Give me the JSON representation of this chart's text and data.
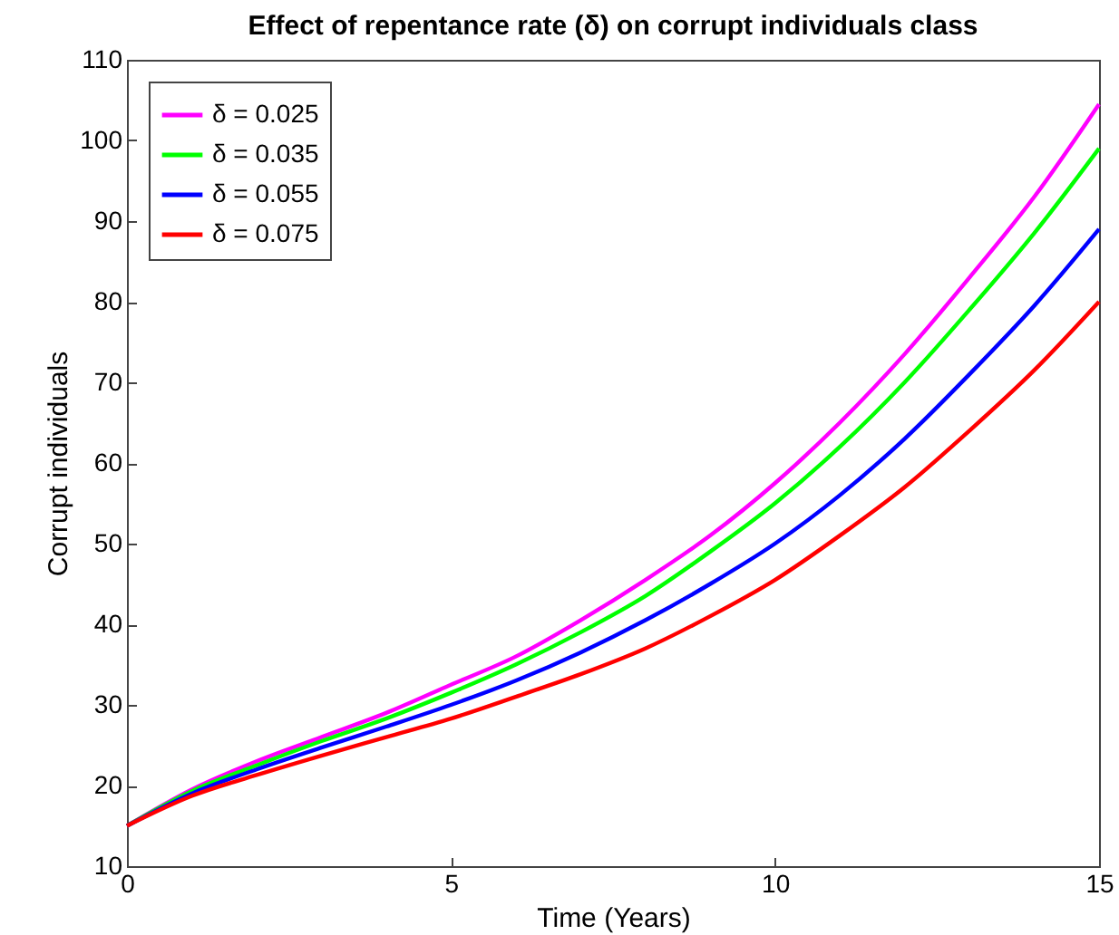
{
  "chart_data": {
    "type": "line",
    "title": "Effect of repentance rate (δ) on corrupt individuals class",
    "xlabel": "Time (Years)",
    "ylabel": "Corrupt individuals",
    "x": [
      0,
      1,
      2,
      3,
      4,
      5,
      6,
      7,
      8,
      9,
      10,
      11,
      12,
      13,
      14,
      15
    ],
    "series": [
      {
        "name": "δ = 0.025",
        "color": "#ff00ff",
        "values": [
          15,
          19.5,
          23,
          26,
          29,
          32.5,
          36,
          40.5,
          45.5,
          51,
          57.5,
          65,
          73.5,
          83,
          93,
          104.5
        ]
      },
      {
        "name": "δ = 0.035",
        "color": "#00ff00",
        "values": [
          15,
          19.3,
          22.5,
          25.5,
          28.3,
          31.5,
          35,
          39,
          43.5,
          49,
          55,
          62,
          70,
          79,
          88.5,
          99
        ]
      },
      {
        "name": "δ = 0.055",
        "color": "#0000ff",
        "values": [
          15,
          19,
          22,
          24.7,
          27.3,
          30,
          33,
          36.5,
          40.5,
          45,
          50,
          56,
          63,
          71,
          79.5,
          89
        ]
      },
      {
        "name": "δ = 0.075",
        "color": "#ff0000",
        "values": [
          15,
          18.7,
          21.3,
          23.7,
          26,
          28.3,
          31,
          33.8,
          37,
          41,
          45.5,
          51,
          57,
          64,
          71.5,
          80
        ]
      }
    ],
    "xlim": [
      0,
      15
    ],
    "xticks": [
      0,
      5,
      10,
      15
    ],
    "ylim": [
      10,
      110
    ],
    "yticks": [
      10,
      20,
      30,
      40,
      50,
      60,
      70,
      80,
      90,
      100,
      110
    ],
    "grid": false,
    "legend": "top left",
    "line_style": "solid",
    "marker": "none"
  }
}
